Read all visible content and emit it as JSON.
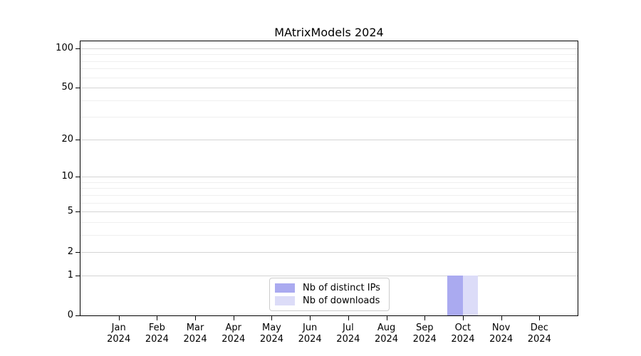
{
  "figure": {
    "background": "#ffffff"
  },
  "chart_data": {
    "type": "bar",
    "title": "MAtrixModels 2024",
    "categories": [
      "Jan",
      "Feb",
      "Mar",
      "Apr",
      "May",
      "Jun",
      "Jul",
      "Aug",
      "Sep",
      "Oct",
      "Nov",
      "Dec"
    ],
    "category_year": "2024",
    "series": [
      {
        "name": "Nb of distinct IPs",
        "color": "#aaaaf0",
        "values": [
          0,
          0,
          0,
          0,
          0,
          0,
          0,
          0,
          0,
          1,
          0,
          0
        ]
      },
      {
        "name": "Nb of downloads",
        "color": "#dcdcf8",
        "values": [
          0,
          0,
          0,
          0,
          0,
          0,
          0,
          0,
          0,
          1,
          0,
          0
        ]
      }
    ],
    "xlabel": "",
    "ylabel": "",
    "yscale": "log1p",
    "ylim": [
      0,
      113
    ],
    "yticks": [
      {
        "value": 0,
        "label": "0"
      },
      {
        "value": 1,
        "label": "1"
      },
      {
        "value": 2,
        "label": "2"
      },
      {
        "value": 5,
        "label": "5"
      },
      {
        "value": 10,
        "label": "10"
      },
      {
        "value": 20,
        "label": "20"
      },
      {
        "value": 50,
        "label": "50"
      },
      {
        "value": 100,
        "label": "100"
      }
    ],
    "minor_gridlines": [
      3,
      4,
      6,
      7,
      8,
      9,
      30,
      40,
      60,
      70,
      80,
      90
    ],
    "grid": "horizontal",
    "legend_position": "lower center",
    "axis_color": "#000000",
    "major_grid_color": "#d4d4d4",
    "minor_grid_color": "#efefef",
    "bar_group": "Oct 2024",
    "bar_values": {
      "Nb of distinct IPs": 1,
      "Nb of downloads": 1
    }
  }
}
